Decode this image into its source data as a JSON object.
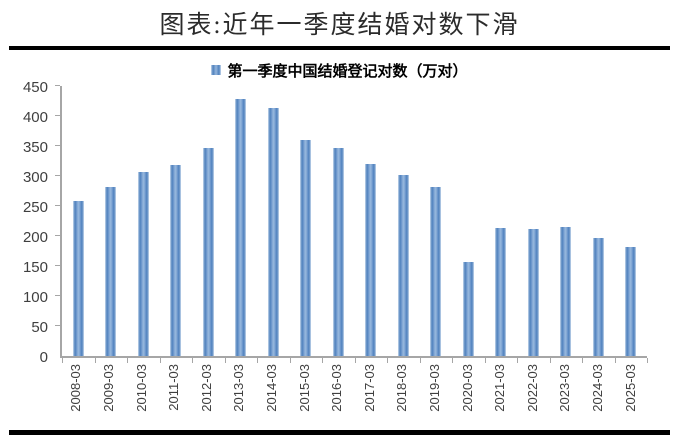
{
  "page": {
    "title": "图表:近年一季度结婚对数下滑"
  },
  "chart_data": {
    "type": "bar",
    "title": "图表:近年一季度结婚对数下滑",
    "legend": "第一季度中国结婚登记对数（万对）",
    "legend_position": "top",
    "categories": [
      "2008-03",
      "2009-03",
      "2010-03",
      "2011-03",
      "2012-03",
      "2013-03",
      "2014-03",
      "2015-03",
      "2016-03",
      "2017-03",
      "2018-03",
      "2019-03",
      "2020-03",
      "2021-03",
      "2022-03",
      "2023-03",
      "2024-03",
      "2025-03"
    ],
    "values": [
      258,
      282,
      306,
      318,
      347,
      428,
      413,
      360,
      346,
      320,
      302,
      281,
      156,
      213,
      211,
      215,
      197,
      181
    ],
    "xlabel": "",
    "ylabel": "",
    "ylim": [
      0,
      450
    ],
    "yticks": [
      0,
      50,
      100,
      150,
      200,
      250,
      300,
      350,
      400,
      450
    ],
    "grid": false,
    "colors": {
      "bar": "#4e80bc",
      "bar_light": "#93b5dc",
      "bar_edge": "#c7d8ec",
      "axis": "#a6a6a6",
      "tick_text": "#3f3f3f",
      "rule": "#000000"
    }
  }
}
